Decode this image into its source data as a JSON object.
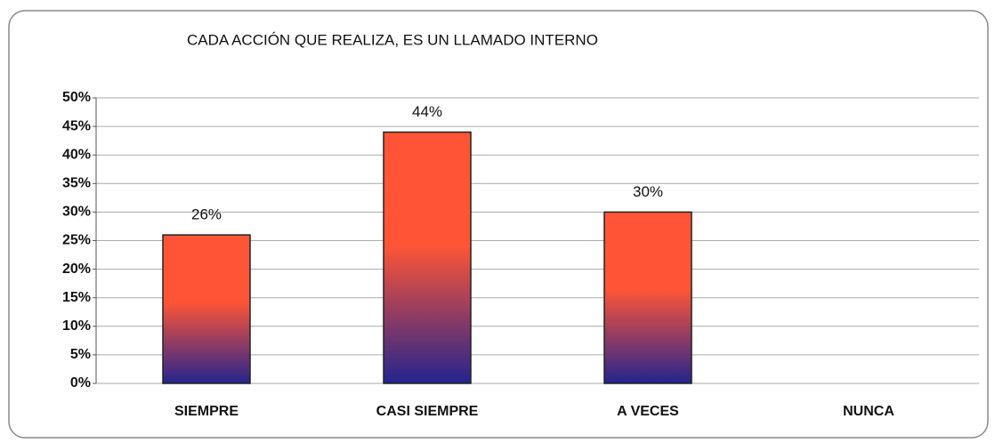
{
  "chart_data": {
    "type": "bar",
    "title": "CADA ACCIÓN QUE REALIZA, ES UN LLAMADO INTERNO",
    "categories": [
      "SIEMPRE",
      "CASI SIEMPRE",
      "A VECES",
      "NUNCA"
    ],
    "values": [
      26,
      44,
      30,
      0
    ],
    "value_labels": [
      "26%",
      "44%",
      "30%",
      null
    ],
    "gradient": [
      "#ff5536",
      "#24248e"
    ],
    "ylim": [
      0,
      50
    ],
    "yticks": [
      {
        "value": 0,
        "label": "0%"
      },
      {
        "value": 5,
        "label": "5%"
      },
      {
        "value": 10,
        "label": "10%"
      },
      {
        "value": 15,
        "label": "15%"
      },
      {
        "value": 20,
        "label": "20%"
      },
      {
        "value": 25,
        "label": "25%"
      },
      {
        "value": 30,
        "label": "30%"
      },
      {
        "value": 35,
        "label": "35%"
      },
      {
        "value": 40,
        "label": "40%"
      },
      {
        "value": 45,
        "label": "45%"
      },
      {
        "value": 50,
        "label": "50%"
      }
    ],
    "grid": true
  }
}
